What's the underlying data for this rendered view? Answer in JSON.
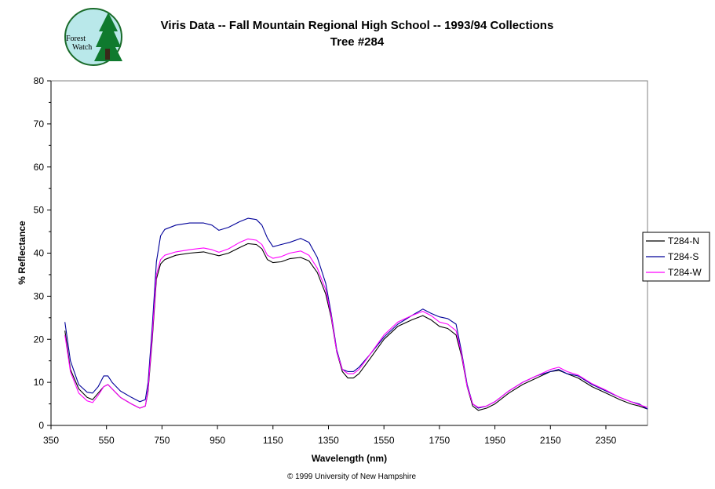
{
  "header": {
    "title": "Viris Data -- Fall Mountain Regional High School -- 1993/94 Collections",
    "subtitle": "Tree #284"
  },
  "logo": {
    "line1": "Forest",
    "line2": "Watch",
    "icon": "forest-watch-logo"
  },
  "footer": {
    "copyright": "© 1999 University of New Hampshire"
  },
  "chart_data": {
    "type": "line",
    "title": "Viris Data -- Fall Mountain Regional High School -- 1993/94 Collections",
    "subtitle": "Tree #284",
    "xlabel": "Wavelength (nm)",
    "ylabel": "% Reflectance",
    "xlim": [
      350,
      2500
    ],
    "ylim": [
      0,
      80
    ],
    "xticks": [
      350,
      550,
      750,
      950,
      1150,
      1350,
      1550,
      1750,
      1950,
      2150,
      2350
    ],
    "yticks": [
      0,
      10,
      20,
      30,
      40,
      50,
      60,
      70,
      80
    ],
    "grid": false,
    "legend_position": "right",
    "series": [
      {
        "name": "T284-N",
        "color": "#000000",
        "points": [
          [
            400,
            22
          ],
          [
            420,
            13
          ],
          [
            450,
            8.5
          ],
          [
            480,
            6.5
          ],
          [
            500,
            6
          ],
          [
            520,
            7.5
          ],
          [
            540,
            9
          ],
          [
            555,
            9.5
          ],
          [
            570,
            8.5
          ],
          [
            600,
            6.5
          ],
          [
            640,
            5
          ],
          [
            670,
            4
          ],
          [
            690,
            4.5
          ],
          [
            700,
            8
          ],
          [
            715,
            20
          ],
          [
            730,
            34
          ],
          [
            745,
            37.5
          ],
          [
            760,
            38.5
          ],
          [
            800,
            39.5
          ],
          [
            850,
            40
          ],
          [
            900,
            40.3
          ],
          [
            930,
            39.8
          ],
          [
            955,
            39.4
          ],
          [
            990,
            40
          ],
          [
            1030,
            41.3
          ],
          [
            1060,
            42.2
          ],
          [
            1090,
            42
          ],
          [
            1110,
            41
          ],
          [
            1130,
            38.5
          ],
          [
            1150,
            37.8
          ],
          [
            1180,
            38
          ],
          [
            1210,
            38.7
          ],
          [
            1250,
            39
          ],
          [
            1280,
            38.2
          ],
          [
            1310,
            35.5
          ],
          [
            1340,
            30.5
          ],
          [
            1360,
            25
          ],
          [
            1380,
            17
          ],
          [
            1400,
            12.5
          ],
          [
            1420,
            11
          ],
          [
            1440,
            11
          ],
          [
            1460,
            12
          ],
          [
            1500,
            15.5
          ],
          [
            1550,
            20
          ],
          [
            1600,
            23
          ],
          [
            1650,
            24.5
          ],
          [
            1690,
            25.5
          ],
          [
            1720,
            24.5
          ],
          [
            1750,
            23
          ],
          [
            1780,
            22.5
          ],
          [
            1810,
            21
          ],
          [
            1830,
            16
          ],
          [
            1850,
            9
          ],
          [
            1870,
            4.5
          ],
          [
            1890,
            3.5
          ],
          [
            1920,
            4
          ],
          [
            1950,
            5
          ],
          [
            2000,
            7.5
          ],
          [
            2050,
            9.5
          ],
          [
            2100,
            11
          ],
          [
            2150,
            12.5
          ],
          [
            2180,
            12.8
          ],
          [
            2210,
            12
          ],
          [
            2250,
            11
          ],
          [
            2300,
            9
          ],
          [
            2350,
            7.5
          ],
          [
            2400,
            6
          ],
          [
            2440,
            5
          ],
          [
            2470,
            4.5
          ],
          [
            2500,
            3.8
          ]
        ]
      },
      {
        "name": "T284-S",
        "color": "#000099",
        "points": [
          [
            400,
            24
          ],
          [
            420,
            15
          ],
          [
            450,
            9.5
          ],
          [
            480,
            7.7
          ],
          [
            500,
            7.5
          ],
          [
            520,
            9
          ],
          [
            540,
            11.5
          ],
          [
            555,
            11.5
          ],
          [
            570,
            10
          ],
          [
            600,
            8
          ],
          [
            640,
            6.5
          ],
          [
            670,
            5.5
          ],
          [
            690,
            6
          ],
          [
            700,
            10
          ],
          [
            715,
            23
          ],
          [
            730,
            38
          ],
          [
            745,
            44
          ],
          [
            760,
            45.5
          ],
          [
            800,
            46.5
          ],
          [
            850,
            47
          ],
          [
            900,
            47
          ],
          [
            930,
            46.5
          ],
          [
            955,
            45.3
          ],
          [
            990,
            46
          ],
          [
            1030,
            47.3
          ],
          [
            1060,
            48.1
          ],
          [
            1090,
            47.8
          ],
          [
            1110,
            46.5
          ],
          [
            1130,
            43.5
          ],
          [
            1150,
            41.5
          ],
          [
            1180,
            42
          ],
          [
            1210,
            42.5
          ],
          [
            1250,
            43.4
          ],
          [
            1280,
            42.5
          ],
          [
            1310,
            39
          ],
          [
            1340,
            33
          ],
          [
            1360,
            26
          ],
          [
            1380,
            17.5
          ],
          [
            1400,
            13
          ],
          [
            1420,
            12.5
          ],
          [
            1440,
            12.5
          ],
          [
            1460,
            13.5
          ],
          [
            1500,
            16.5
          ],
          [
            1550,
            20.5
          ],
          [
            1600,
            23.5
          ],
          [
            1650,
            25.5
          ],
          [
            1690,
            27
          ],
          [
            1720,
            26
          ],
          [
            1750,
            25.2
          ],
          [
            1780,
            24.8
          ],
          [
            1810,
            23.5
          ],
          [
            1830,
            17
          ],
          [
            1850,
            9.5
          ],
          [
            1870,
            5
          ],
          [
            1890,
            4
          ],
          [
            1920,
            4.5
          ],
          [
            1950,
            5.5
          ],
          [
            2000,
            8
          ],
          [
            2050,
            10
          ],
          [
            2100,
            11.5
          ],
          [
            2150,
            12.5
          ],
          [
            2180,
            13
          ],
          [
            2210,
            12
          ],
          [
            2250,
            11.5
          ],
          [
            2300,
            9.5
          ],
          [
            2350,
            8
          ],
          [
            2400,
            6.5
          ],
          [
            2440,
            5.5
          ],
          [
            2470,
            5
          ],
          [
            2500,
            3.8
          ]
        ]
      },
      {
        "name": "T284-W",
        "color": "#ff00ff",
        "points": [
          [
            400,
            21
          ],
          [
            420,
            12.5
          ],
          [
            450,
            7.5
          ],
          [
            480,
            5.7
          ],
          [
            500,
            5.3
          ],
          [
            520,
            7
          ],
          [
            540,
            9
          ],
          [
            555,
            9.5
          ],
          [
            570,
            8.5
          ],
          [
            600,
            6.5
          ],
          [
            640,
            5
          ],
          [
            670,
            4
          ],
          [
            690,
            4.5
          ],
          [
            700,
            8.5
          ],
          [
            715,
            21
          ],
          [
            730,
            35
          ],
          [
            745,
            38.5
          ],
          [
            760,
            39.5
          ],
          [
            800,
            40.3
          ],
          [
            850,
            40.8
          ],
          [
            900,
            41.2
          ],
          [
            930,
            40.8
          ],
          [
            955,
            40.2
          ],
          [
            990,
            41
          ],
          [
            1030,
            42.5
          ],
          [
            1060,
            43.3
          ],
          [
            1090,
            43
          ],
          [
            1110,
            42
          ],
          [
            1130,
            39.5
          ],
          [
            1150,
            38.8
          ],
          [
            1180,
            39.2
          ],
          [
            1210,
            40
          ],
          [
            1250,
            40.5
          ],
          [
            1280,
            39.5
          ],
          [
            1310,
            36.5
          ],
          [
            1340,
            31.5
          ],
          [
            1360,
            25.5
          ],
          [
            1380,
            17
          ],
          [
            1400,
            13
          ],
          [
            1420,
            12
          ],
          [
            1440,
            12
          ],
          [
            1460,
            13
          ],
          [
            1500,
            16.5
          ],
          [
            1550,
            21
          ],
          [
            1600,
            24
          ],
          [
            1650,
            25.5
          ],
          [
            1690,
            26.5
          ],
          [
            1720,
            25.5
          ],
          [
            1750,
            24
          ],
          [
            1780,
            23.5
          ],
          [
            1810,
            22
          ],
          [
            1830,
            16.5
          ],
          [
            1850,
            9
          ],
          [
            1870,
            5
          ],
          [
            1890,
            4.2
          ],
          [
            1920,
            4.5
          ],
          [
            1950,
            5.5
          ],
          [
            2000,
            8
          ],
          [
            2050,
            10
          ],
          [
            2100,
            11.5
          ],
          [
            2150,
            13
          ],
          [
            2180,
            13.5
          ],
          [
            2210,
            12.5
          ],
          [
            2250,
            11.7
          ],
          [
            2300,
            9.7
          ],
          [
            2350,
            8.2
          ],
          [
            2400,
            6.5
          ],
          [
            2440,
            5.5
          ],
          [
            2470,
            4.8
          ],
          [
            2500,
            4.2
          ]
        ]
      }
    ]
  }
}
